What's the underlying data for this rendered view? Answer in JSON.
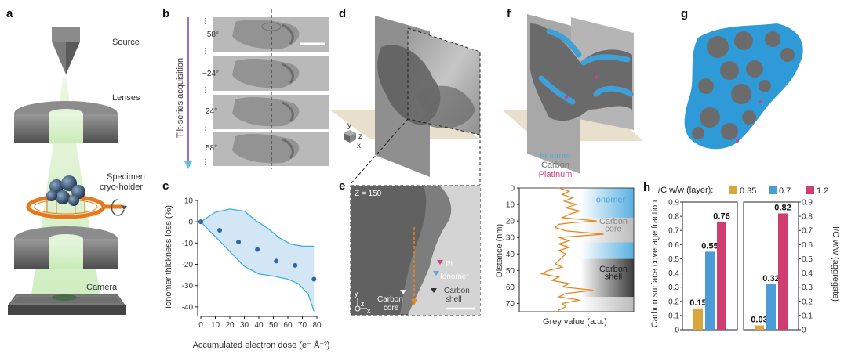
{
  "panels": {
    "a": {
      "label": "a",
      "source": "Source",
      "lenses": "Lenses",
      "specimen": "Specimen",
      "holder": "cryo-holder",
      "camera": "Camera"
    },
    "b": {
      "label": "b",
      "axis_label": "Tilt-series acquisition",
      "angles": [
        "−58°",
        "−24°",
        "24°",
        "58°"
      ]
    },
    "c": {
      "label": "c",
      "ylabel": "Ionomer thickness loss (%)",
      "xlabel": "Accumulated electron dose (e⁻ Å⁻²)"
    },
    "d": {
      "label": "d",
      "axis_y": "y",
      "axis_z": "z",
      "axis_x": "x"
    },
    "e": {
      "label": "e",
      "z_label": "Z = 150",
      "pt": "Pt",
      "ionomer": "Ionomer",
      "carbon_shell_1": "Carbon",
      "carbon_shell_2": "shell",
      "carbon_core_1": "Carbon",
      "carbon_core_2": "core",
      "axis_y": "y",
      "axis_z": "z",
      "axis_x": "x"
    },
    "f": {
      "label": "f",
      "legend": [
        "Ionomer",
        "Carbon",
        "Platinum"
      ],
      "legend_colors": [
        "#5aa9d6",
        "#777777",
        "#d0408a"
      ],
      "profile_ylabel": "Distance (nm)",
      "profile_xlabel": "Grey value (a.u.)",
      "regions": {
        "ionomer": "Ionomer",
        "carbon_core_1": "Carbon",
        "carbon_core_2": "core",
        "carbon_shell_1": "Carbon",
        "carbon_shell_2": "shell"
      }
    },
    "g": {
      "label": "g"
    },
    "h": {
      "label": "h",
      "legend_title": "I/C w/w (layer):",
      "ylabel_left": "Carbon surface coverage fraction",
      "ylabel_right": "I/C w/w (aggregate)"
    }
  },
  "chart_data": [
    {
      "id": "c",
      "type": "scatter",
      "title": "",
      "xlabel": "Accumulated electron dose (e⁻ Å⁻²)",
      "ylabel": "Ionomer thickness loss (%)",
      "xlim": [
        0,
        80
      ],
      "ylim": [
        -43,
        10
      ],
      "xticks": [
        0,
        10,
        20,
        30,
        40,
        50,
        60,
        70,
        80
      ],
      "yticks": [
        10,
        0,
        -10,
        -20,
        -30,
        -40
      ],
      "points": {
        "x": [
          0,
          13,
          26,
          39,
          52,
          65,
          78
        ],
        "y": [
          0,
          -4,
          -9.5,
          -13,
          -18.5,
          -20.5,
          -27
        ]
      },
      "band_upper": [
        [
          0,
          0
        ],
        [
          10,
          4.5
        ],
        [
          20,
          6
        ],
        [
          30,
          5
        ],
        [
          38,
          0.5
        ],
        [
          46,
          -3
        ],
        [
          54,
          -7.5
        ],
        [
          62,
          -10.5
        ],
        [
          70,
          -11.5
        ],
        [
          78,
          -11.5
        ]
      ],
      "band_lower": [
        [
          0,
          0
        ],
        [
          10,
          -7
        ],
        [
          20,
          -14
        ],
        [
          30,
          -21
        ],
        [
          40,
          -24.5
        ],
        [
          50,
          -25.5
        ],
        [
          60,
          -27
        ],
        [
          67,
          -29
        ],
        [
          74,
          -34
        ],
        [
          78,
          -42
        ]
      ]
    },
    {
      "id": "f-profile",
      "type": "line",
      "xlabel": "Grey value (a.u.)",
      "ylabel": "Distance (nm)",
      "ylim": [
        0,
        75
      ],
      "yticks": [
        0,
        10,
        20,
        30,
        40,
        50,
        60,
        70
      ],
      "profile": {
        "distance": [
          0,
          2,
          4,
          6,
          8,
          10,
          12,
          14,
          16,
          18,
          20,
          21,
          22,
          24,
          26,
          28,
          30,
          32,
          34,
          36,
          38,
          40,
          42,
          44,
          46,
          48,
          50,
          52,
          54,
          56,
          58,
          60,
          62,
          64,
          66,
          68,
          70,
          72,
          74,
          75
        ],
        "grey": [
          0.3,
          0.45,
          0.35,
          0.5,
          0.38,
          0.55,
          0.4,
          0.6,
          0.45,
          0.35,
          0.85,
          0.5,
          0.3,
          0.25,
          0.4,
          0.95,
          0.3,
          0.45,
          0.3,
          0.45,
          0.3,
          0.4,
          0.35,
          0.3,
          0.25,
          0.35,
          0.15,
          0.05,
          0.3,
          0.2,
          0.45,
          0.35,
          0.8,
          0.4,
          0.3,
          0.6,
          0.35,
          0.4,
          0.3,
          0.3
        ]
      }
    },
    {
      "id": "h-layer",
      "type": "bar",
      "ylabel": "Carbon surface coverage fraction",
      "ylim": [
        0,
        0.9
      ],
      "yticks": [
        0,
        0.1,
        0.2,
        0.3,
        0.4,
        0.5,
        0.6,
        0.7,
        0.8,
        0.9
      ],
      "series": [
        {
          "name": "0.35",
          "color": "#d9a63c",
          "value": 0.15,
          "label": "0.15"
        },
        {
          "name": "0.7",
          "color": "#4a9bd6",
          "value": 0.55,
          "label": "0.55"
        },
        {
          "name": "1.2",
          "color": "#cf3e6e",
          "value": 0.76,
          "label": "0.76"
        }
      ]
    },
    {
      "id": "h-aggregate",
      "type": "bar",
      "ylabel": "I/C w/w (aggregate)",
      "ylim": [
        0,
        0.9
      ],
      "yticks": [
        0,
        0.1,
        0.2,
        0.3,
        0.4,
        0.5,
        0.6,
        0.7,
        0.8,
        0.9
      ],
      "series": [
        {
          "name": "0.35",
          "color": "#d9a63c",
          "value": 0.03,
          "label": "0.03"
        },
        {
          "name": "0.7",
          "color": "#4a9bd6",
          "value": 0.32,
          "label": "0.32"
        },
        {
          "name": "1.2",
          "color": "#cf3e6e",
          "value": 0.82,
          "label": "0.82"
        }
      ]
    }
  ]
}
